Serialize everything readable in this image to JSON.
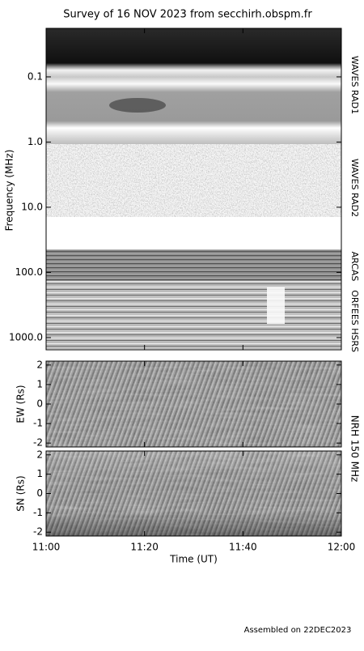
{
  "chart_data": [
    {
      "type": "spectrogram",
      "title": "Survey of 16 NOV 2023 from secchirh.obspm.fr",
      "y_label": "Frequency (MHz)",
      "log_scale": true,
      "y_inverted": true,
      "ylim": [
        0.018,
        1540
      ],
      "yticks": [
        0.1,
        {
          "value": 1,
          "label": "1.0"
        },
        {
          "value": 10,
          "label": "10.0"
        },
        {
          "value": 100,
          "label": "100.0"
        },
        {
          "value": 1000,
          "label": "1000.0"
        }
      ],
      "bands": [
        "WAVES RAD1",
        "WAVES RAD2",
        "ARCAS",
        "ORFEES",
        "HSRS"
      ]
    },
    {
      "type": "spectrogram",
      "y_label": "EW (Rs)",
      "ylim": [
        -2.2,
        2.2
      ],
      "yticks": [
        -2,
        -1,
        0,
        1,
        2
      ]
    },
    {
      "type": "spectrogram",
      "y_label": "SN (Rs)",
      "ylim": [
        -2.2,
        2.2
      ],
      "yticks": [
        -2,
        -1,
        0,
        1,
        2
      ],
      "side_label": "NRH 150 MHz",
      "x_label": "Time (UT)",
      "xlim": [
        0,
        60
      ],
      "xticks": [
        {
          "value": 0,
          "label": "11:00"
        },
        {
          "value": 20,
          "label": "11:20"
        },
        {
          "value": 40,
          "label": "11:40"
        },
        {
          "value": 60,
          "label": "12:00"
        }
      ]
    }
  ],
  "footer": "Assembled on 22DEC2023"
}
